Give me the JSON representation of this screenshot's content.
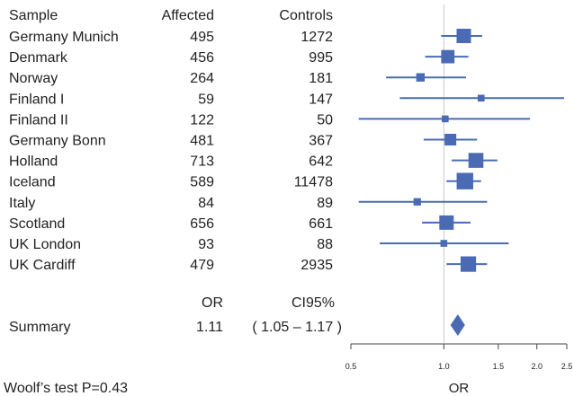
{
  "chart_data": {
    "type": "forest",
    "headers": {
      "sample": "Sample",
      "affected": "Affected",
      "controls": "Controls"
    },
    "studies": [
      {
        "name": "Germany Munich",
        "affected": "495",
        "controls": "1272",
        "or": 1.16,
        "ci": [
          0.98,
          1.33
        ],
        "weight": 1.0
      },
      {
        "name": "Denmark",
        "affected": "456",
        "controls": "995",
        "or": 1.03,
        "ci": [
          0.87,
          1.2
        ],
        "weight": 0.9
      },
      {
        "name": "Norway",
        "affected": "264",
        "controls": "181",
        "or": 0.84,
        "ci": [
          0.65,
          1.18
        ],
        "weight": 0.45
      },
      {
        "name": "Finland I",
        "affected": "59",
        "controls": "147",
        "or": 1.32,
        "ci": [
          0.72,
          2.45
        ],
        "weight": 0.3
      },
      {
        "name": "Finland II",
        "affected": "122",
        "controls": "50",
        "or": 1.01,
        "ci": [
          0.53,
          1.9
        ],
        "weight": 0.3
      },
      {
        "name": "Germany Bonn",
        "affected": "481",
        "controls": "367",
        "or": 1.05,
        "ci": [
          0.86,
          1.28
        ],
        "weight": 0.75
      },
      {
        "name": "Holland",
        "affected": "713",
        "controls": "642",
        "or": 1.27,
        "ci": [
          1.06,
          1.49
        ],
        "weight": 1.05
      },
      {
        "name": "Iceland",
        "affected": "589",
        "controls": "11478",
        "or": 1.17,
        "ci": [
          1.02,
          1.32
        ],
        "weight": 1.2
      },
      {
        "name": "Italy",
        "affected": "84",
        "controls": "89",
        "or": 0.82,
        "ci": [
          0.53,
          1.38
        ],
        "weight": 0.35
      },
      {
        "name": "Scotland",
        "affected": "656",
        "controls": "661",
        "or": 1.02,
        "ci": [
          0.85,
          1.22
        ],
        "weight": 1.0
      },
      {
        "name": "UK London",
        "affected": "93",
        "controls": "88",
        "or": 1.0,
        "ci": [
          0.62,
          1.62
        ],
        "weight": 0.3
      },
      {
        "name": "UK Cardiff",
        "affected": "479",
        "controls": "2935",
        "or": 1.2,
        "ci": [
          1.02,
          1.38
        ],
        "weight": 1.1
      }
    ],
    "summary": {
      "label": "Summary",
      "or_header": "OR",
      "ci_header": "CI95%",
      "or_text": "1.11",
      "ci_text": "( 1.05 – 1.17 )",
      "or": 1.11,
      "ci": [
        1.05,
        1.17
      ]
    },
    "xaxis": {
      "label": "OR",
      "scale": "log",
      "range": [
        0.5,
        2.5
      ],
      "ticks": [
        "0.5",
        "1.0",
        "1.5",
        "2.0",
        "2.5"
      ],
      "reference": 1.0
    },
    "footnote": "Woolf’s test P=0.43",
    "colors": {
      "marker": "#4a6bb3",
      "reference": "#c8c8c8",
      "axis": "#444444"
    }
  }
}
